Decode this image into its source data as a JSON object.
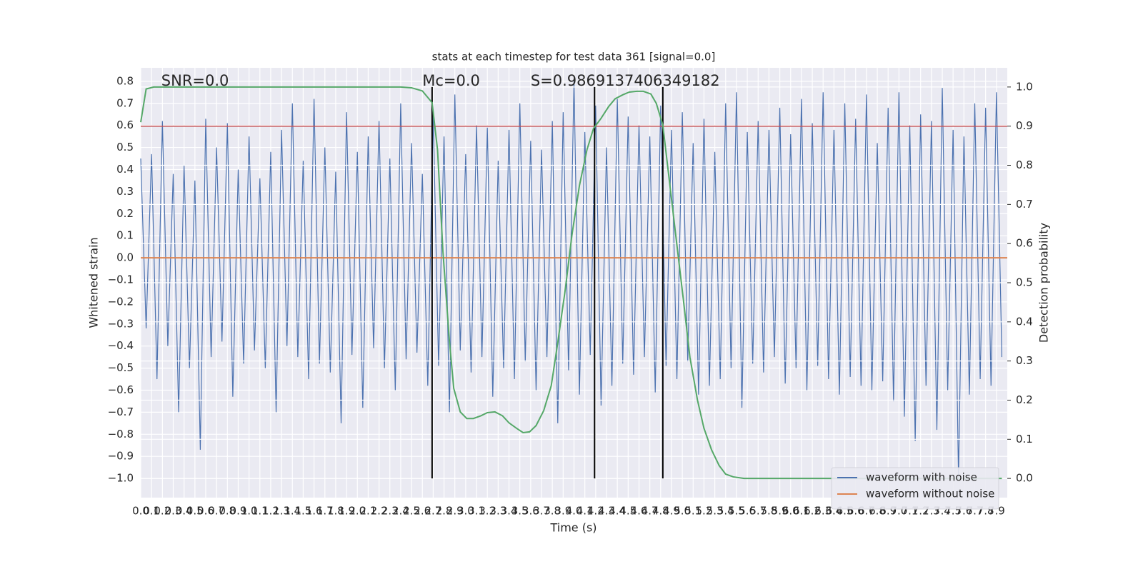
{
  "chart_data": {
    "type": "line",
    "title": "stats at each timestep for test data 361 [signal=0.0]",
    "xlabel": "Time (s)",
    "ylabel": "Whitened strain",
    "y2label": "Detection probability",
    "annotations": [
      "SNR=0.0",
      "Mc=0.0",
      "S=0.9869137406349182"
    ],
    "annotation_x": [
      0.19,
      2.6,
      3.6
    ],
    "xlim": [
      0,
      8.0
    ],
    "ylim": [
      -1.087,
      0.861
    ],
    "y2lim": [
      -0.049,
      1.049
    ],
    "grid": true,
    "legend": "lower right",
    "xticks": [
      {
        "value": 0.0,
        "label": "0.0"
      },
      0.1,
      0.2,
      0.3,
      0.4,
      0.5,
      0.6,
      0.7,
      0.8,
      0.9,
      {
        "value": 1.0,
        "label": "1.0"
      },
      1.1,
      1.2,
      1.3,
      1.4,
      1.5,
      1.6,
      1.7,
      1.8,
      1.9,
      {
        "value": 2.0,
        "label": "2.0"
      },
      2.1,
      2.2,
      2.3,
      2.4,
      2.5,
      2.6,
      2.7,
      2.8,
      2.9,
      {
        "value": 3.0,
        "label": "3.0"
      },
      3.1,
      3.2,
      3.3,
      3.4,
      3.5,
      3.6,
      3.7,
      3.8,
      3.9,
      {
        "value": 4.0,
        "label": "4.0"
      },
      4.1,
      4.2,
      4.3,
      4.4,
      4.5,
      4.6,
      4.7,
      4.8,
      4.9,
      {
        "value": 5.0,
        "label": "5.0"
      },
      5.1,
      5.2,
      5.3,
      5.4,
      5.5,
      5.6,
      5.7,
      5.8,
      5.9,
      {
        "value": 6.0,
        "label": "6.0"
      },
      6.1,
      6.2,
      6.3,
      6.4,
      6.5,
      6.6,
      6.7,
      6.8,
      6.9,
      {
        "value": 7.0,
        "label": "7.0"
      },
      7.1,
      7.2,
      7.3,
      7.4,
      7.5,
      7.6,
      7.7,
      7.8,
      7.9
    ],
    "yticks": [
      {
        "value": 0.8,
        "label": "0.8"
      },
      {
        "value": 0.7,
        "label": "0.7"
      },
      {
        "value": 0.6,
        "label": "0.6"
      },
      {
        "value": 0.5,
        "label": "0.5"
      },
      {
        "value": 0.4,
        "label": "0.4"
      },
      {
        "value": 0.3,
        "label": "0.3"
      },
      {
        "value": 0.2,
        "label": "0.2"
      },
      {
        "value": 0.1,
        "label": "0.1"
      },
      {
        "value": 0.0,
        "label": "0.0"
      },
      {
        "value": -0.1,
        "label": "−0.1"
      },
      {
        "value": -0.2,
        "label": "−0.2"
      },
      {
        "value": -0.3,
        "label": "−0.3"
      },
      {
        "value": -0.4,
        "label": "−0.4"
      },
      {
        "value": -0.5,
        "label": "−0.5"
      },
      {
        "value": -0.6,
        "label": "−0.6"
      },
      {
        "value": -0.7,
        "label": "−0.7"
      },
      {
        "value": -0.8,
        "label": "−0.8"
      },
      {
        "value": -0.9,
        "label": "−0.9"
      },
      {
        "value": -1.0,
        "label": "−1.0"
      }
    ],
    "y2ticks": [
      {
        "value": 0.0,
        "label": "0.0"
      },
      0.1,
      0.2,
      0.3,
      0.4,
      0.5,
      0.6,
      0.7,
      0.8,
      0.9,
      {
        "value": 1.0,
        "label": "1.0"
      }
    ],
    "threshold": 0.9,
    "threshold_color": "#c44e52",
    "vlines": [
      2.69,
      4.19,
      4.82
    ],
    "vline_color": "#000000",
    "series": [
      {
        "name": "waveform with noise",
        "color": "#4c72b0",
        "x": [
          0.0,
          0.05,
          0.1,
          0.15,
          0.2,
          0.25,
          0.3,
          0.35,
          0.4,
          0.45,
          0.5,
          0.55,
          0.6,
          0.65,
          0.7,
          0.75,
          0.8,
          0.85,
          0.9,
          0.95,
          1.0,
          1.05,
          1.1,
          1.15,
          1.2,
          1.25,
          1.3,
          1.35,
          1.4,
          1.45,
          1.5,
          1.55,
          1.6,
          1.65,
          1.7,
          1.75,
          1.8,
          1.85,
          1.9,
          1.95,
          2.0,
          2.05,
          2.1,
          2.15,
          2.2,
          2.25,
          2.3,
          2.35,
          2.4,
          2.45,
          2.5,
          2.55,
          2.6,
          2.65,
          2.7,
          2.75,
          2.8,
          2.85,
          2.9,
          2.95,
          3.0,
          3.05,
          3.1,
          3.15,
          3.2,
          3.25,
          3.3,
          3.35,
          3.4,
          3.45,
          3.5,
          3.55,
          3.6,
          3.65,
          3.7,
          3.75,
          3.8,
          3.85,
          3.9,
          3.95,
          4.0,
          4.05,
          4.1,
          4.15,
          4.2,
          4.25,
          4.3,
          4.35,
          4.4,
          4.45,
          4.5,
          4.55,
          4.6,
          4.65,
          4.7,
          4.75,
          4.8,
          4.85,
          4.9,
          4.95,
          5.0,
          5.05,
          5.1,
          5.15,
          5.2,
          5.25,
          5.3,
          5.35,
          5.4,
          5.45,
          5.5,
          5.55,
          5.6,
          5.65,
          5.7,
          5.75,
          5.8,
          5.85,
          5.9,
          5.95,
          6.0,
          6.05,
          6.1,
          6.15,
          6.2,
          6.25,
          6.3,
          6.35,
          6.4,
          6.45,
          6.5,
          6.55,
          6.6,
          6.65,
          6.7,
          6.75,
          6.8,
          6.85,
          6.9,
          6.95,
          7.0,
          7.05,
          7.1,
          7.15,
          7.2,
          7.25,
          7.3,
          7.35,
          7.4,
          7.45,
          7.5,
          7.55,
          7.6,
          7.65,
          7.7,
          7.75,
          7.8,
          7.85,
          7.9,
          7.95
        ],
        "values": [
          0.45,
          -0.32,
          0.47,
          -0.55,
          0.62,
          -0.4,
          0.38,
          -0.7,
          0.42,
          -0.5,
          0.35,
          -0.87,
          0.63,
          -0.45,
          0.5,
          -0.38,
          0.61,
          -0.63,
          0.4,
          -0.48,
          0.55,
          -0.42,
          0.36,
          -0.5,
          0.48,
          -0.7,
          0.58,
          -0.4,
          0.7,
          -0.45,
          0.44,
          -0.55,
          0.72,
          -0.48,
          0.5,
          -0.52,
          0.39,
          -0.75,
          0.66,
          -0.44,
          0.48,
          -0.68,
          0.55,
          -0.41,
          0.62,
          -0.5,
          0.45,
          -0.6,
          0.7,
          -0.46,
          0.52,
          -0.43,
          0.38,
          -0.58,
          0.65,
          -0.49,
          0.55,
          -0.7,
          0.74,
          -0.42,
          0.47,
          -0.52,
          0.6,
          -0.45,
          0.59,
          -0.63,
          0.44,
          -0.5,
          0.58,
          -0.55,
          0.7,
          -0.47,
          0.53,
          -0.6,
          0.49,
          -0.45,
          0.62,
          -0.75,
          0.66,
          -0.51,
          0.8,
          -0.62,
          0.57,
          -0.44,
          0.69,
          -0.67,
          0.5,
          -0.58,
          0.72,
          -0.48,
          0.64,
          -0.53,
          0.6,
          -0.45,
          0.55,
          -0.61,
          0.69,
          -0.49,
          0.58,
          -0.55,
          0.66,
          -0.47,
          0.52,
          -0.62,
          0.63,
          -0.58,
          0.48,
          -0.55,
          0.7,
          -0.5,
          0.75,
          -0.68,
          0.57,
          -0.48,
          0.62,
          -0.52,
          0.58,
          -0.45,
          0.68,
          -0.57,
          0.56,
          -0.5,
          0.72,
          -0.6,
          0.61,
          -0.49,
          0.75,
          -0.55,
          0.58,
          -0.62,
          0.7,
          -0.54,
          0.63,
          -0.58,
          0.74,
          -0.6,
          0.52,
          -0.56,
          0.68,
          -0.65,
          0.75,
          -0.72,
          0.6,
          -0.83,
          0.65,
          -0.58,
          0.62,
          -0.78,
          0.77,
          -0.6,
          0.58,
          -1.0,
          0.55,
          -0.62,
          0.7,
          -0.55,
          0.68,
          -0.58,
          0.75,
          -0.45
        ]
      },
      {
        "name": "waveform without noise",
        "color": "#dd8452",
        "x": [
          0.0,
          8.0
        ],
        "values": [
          0,
          0
        ]
      },
      {
        "name": "Detection probability",
        "color": "#55a868",
        "axis": "y2",
        "x": [
          0.0,
          0.05,
          0.12,
          2.4,
          2.5,
          2.6,
          2.69,
          2.74,
          2.79,
          2.85,
          2.89,
          2.95,
          3.01,
          3.07,
          3.14,
          3.2,
          3.27,
          3.34,
          3.4,
          3.47,
          3.53,
          3.59,
          3.65,
          3.72,
          3.79,
          3.85,
          3.92,
          3.98,
          4.05,
          4.12,
          4.18,
          4.25,
          4.32,
          4.38,
          4.45,
          4.51,
          4.58,
          4.64,
          4.71,
          4.76,
          4.82,
          4.87,
          4.94,
          5.01,
          5.07,
          5.14,
          5.2,
          5.27,
          5.34,
          5.4,
          5.47,
          5.57,
          7.95
        ],
        "values": [
          0.91,
          0.995,
          1.0,
          1.0,
          0.998,
          0.99,
          0.96,
          0.84,
          0.58,
          0.35,
          0.23,
          0.17,
          0.153,
          0.153,
          0.16,
          0.168,
          0.17,
          0.16,
          0.142,
          0.128,
          0.117,
          0.119,
          0.135,
          0.173,
          0.237,
          0.347,
          0.484,
          0.62,
          0.748,
          0.84,
          0.894,
          0.92,
          0.95,
          0.97,
          0.98,
          0.987,
          0.989,
          0.989,
          0.982,
          0.958,
          0.903,
          0.785,
          0.62,
          0.456,
          0.31,
          0.2,
          0.128,
          0.073,
          0.033,
          0.011,
          0.004,
          0.0,
          0.0
        ]
      }
    ]
  }
}
